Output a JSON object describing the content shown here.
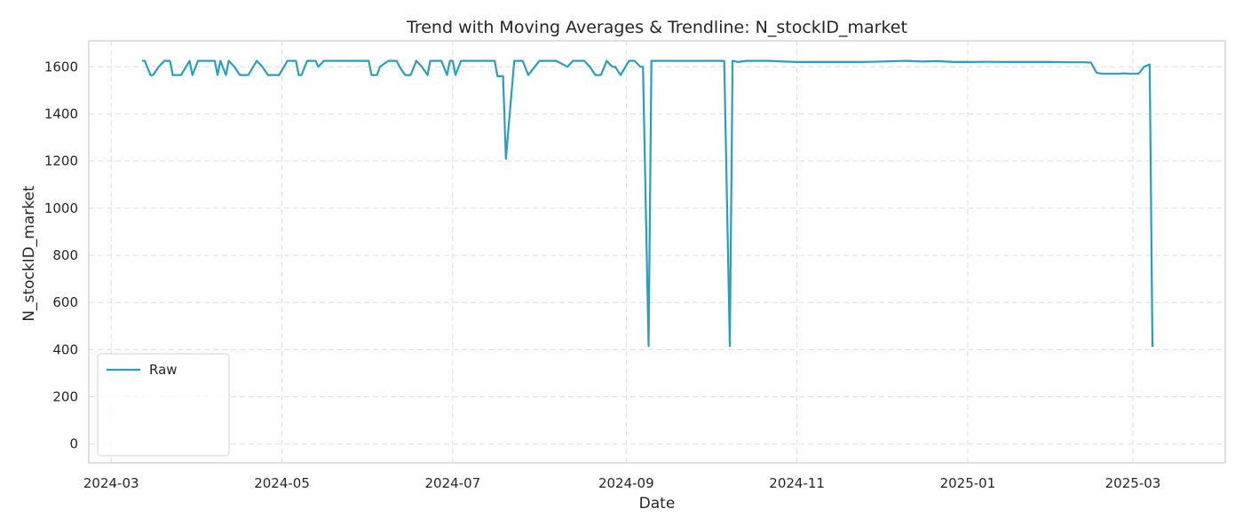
{
  "chart_data": {
    "type": "line",
    "title": "Trend with Moving Averages & Trendline: N_stockID_market",
    "xlabel": "Date",
    "ylabel": "N_stockID_market",
    "xlim": [
      "2024-02-22",
      "2025-04-03"
    ],
    "ylim": [
      -80,
      1710
    ],
    "xticks": [
      "2024-03",
      "2024-05",
      "2024-07",
      "2024-09",
      "2024-11",
      "2025-01",
      "2025-03"
    ],
    "yticks": [
      0,
      200,
      400,
      600,
      800,
      1000,
      1200,
      1400,
      1600
    ],
    "grid": true,
    "legend_position": "lower-left",
    "series": [
      {
        "name": "Raw",
        "color": "#2a9fbc",
        "style": "solid",
        "points": [
          [
            "2024-03-12",
            1625
          ],
          [
            "2024-03-13",
            1625
          ],
          [
            "2024-03-15",
            1565
          ],
          [
            "2024-03-16",
            1565
          ],
          [
            "2024-03-18",
            1600
          ],
          [
            "2024-03-20",
            1625
          ],
          [
            "2024-03-22",
            1625
          ],
          [
            "2024-03-23",
            1565
          ],
          [
            "2024-03-26",
            1565
          ],
          [
            "2024-03-29",
            1625
          ],
          [
            "2024-03-30",
            1565
          ],
          [
            "2024-04-01",
            1625
          ],
          [
            "2024-04-05",
            1625
          ],
          [
            "2024-04-07",
            1625
          ],
          [
            "2024-04-08",
            1565
          ],
          [
            "2024-04-09",
            1625
          ],
          [
            "2024-04-11",
            1565
          ],
          [
            "2024-04-12",
            1625
          ],
          [
            "2024-04-14",
            1600
          ],
          [
            "2024-04-16",
            1565
          ],
          [
            "2024-04-19",
            1565
          ],
          [
            "2024-04-22",
            1625
          ],
          [
            "2024-04-24",
            1600
          ],
          [
            "2024-04-26",
            1565
          ],
          [
            "2024-04-30",
            1565
          ],
          [
            "2024-05-03",
            1625
          ],
          [
            "2024-05-06",
            1625
          ],
          [
            "2024-05-07",
            1565
          ],
          [
            "2024-05-08",
            1565
          ],
          [
            "2024-05-10",
            1625
          ],
          [
            "2024-05-13",
            1625
          ],
          [
            "2024-05-14",
            1600
          ],
          [
            "2024-05-16",
            1625
          ],
          [
            "2024-05-21",
            1625
          ],
          [
            "2024-05-27",
            1625
          ],
          [
            "2024-05-29",
            1625
          ],
          [
            "2024-06-01",
            1625
          ],
          [
            "2024-06-02",
            1565
          ],
          [
            "2024-06-04",
            1565
          ],
          [
            "2024-06-05",
            1600
          ],
          [
            "2024-06-08",
            1625
          ],
          [
            "2024-06-11",
            1625
          ],
          [
            "2024-06-12",
            1600
          ],
          [
            "2024-06-14",
            1565
          ],
          [
            "2024-06-16",
            1565
          ],
          [
            "2024-06-18",
            1625
          ],
          [
            "2024-06-20",
            1600
          ],
          [
            "2024-06-22",
            1565
          ],
          [
            "2024-06-23",
            1625
          ],
          [
            "2024-06-25",
            1625
          ],
          [
            "2024-06-27",
            1625
          ],
          [
            "2024-06-29",
            1565
          ],
          [
            "2024-06-30",
            1625
          ],
          [
            "2024-07-01",
            1625
          ],
          [
            "2024-07-02",
            1565
          ],
          [
            "2024-07-04",
            1625
          ],
          [
            "2024-07-06",
            1625
          ],
          [
            "2024-07-08",
            1625
          ],
          [
            "2024-07-10",
            1625
          ],
          [
            "2024-07-12",
            1625
          ],
          [
            "2024-07-14",
            1625
          ],
          [
            "2024-07-16",
            1625
          ],
          [
            "2024-07-17",
            1560
          ],
          [
            "2024-07-19",
            1560
          ],
          [
            "2024-07-20",
            1210
          ],
          [
            "2024-07-23",
            1625
          ],
          [
            "2024-07-26",
            1625
          ],
          [
            "2024-07-28",
            1565
          ],
          [
            "2024-08-01",
            1625
          ],
          [
            "2024-08-05",
            1625
          ],
          [
            "2024-08-07",
            1625
          ],
          [
            "2024-08-11",
            1600
          ],
          [
            "2024-08-13",
            1625
          ],
          [
            "2024-08-17",
            1625
          ],
          [
            "2024-08-19",
            1600
          ],
          [
            "2024-08-21",
            1565
          ],
          [
            "2024-08-23",
            1565
          ],
          [
            "2024-08-25",
            1625
          ],
          [
            "2024-08-27",
            1600
          ],
          [
            "2024-08-28",
            1600
          ],
          [
            "2024-08-30",
            1565
          ],
          [
            "2024-09-02",
            1625
          ],
          [
            "2024-09-04",
            1625
          ],
          [
            "2024-09-06",
            1600
          ],
          [
            "2024-09-07",
            1600
          ],
          [
            "2024-09-09",
            415
          ],
          [
            "2024-09-10",
            1625
          ],
          [
            "2024-09-13",
            1625
          ],
          [
            "2024-09-17",
            1625
          ],
          [
            "2024-09-21",
            1625
          ],
          [
            "2024-09-24",
            1625
          ],
          [
            "2024-09-30",
            1625
          ],
          [
            "2024-10-02",
            1625
          ],
          [
            "2024-10-03",
            1625
          ],
          [
            "2024-10-04",
            1625
          ],
          [
            "2024-10-05",
            1625
          ],
          [
            "2024-10-06",
            1625
          ],
          [
            "2024-10-08",
            415
          ],
          [
            "2024-10-09",
            1625
          ],
          [
            "2024-10-11",
            1620
          ],
          [
            "2024-10-14",
            1625
          ],
          [
            "2024-10-18",
            1625
          ],
          [
            "2024-10-22",
            1625
          ],
          [
            "2024-10-27",
            1622
          ],
          [
            "2024-11-01",
            1620
          ],
          [
            "2024-11-06",
            1620
          ],
          [
            "2024-11-12",
            1620
          ],
          [
            "2024-11-17",
            1620
          ],
          [
            "2024-11-23",
            1620
          ],
          [
            "2024-11-28",
            1621
          ],
          [
            "2024-12-04",
            1623
          ],
          [
            "2024-12-10",
            1625
          ],
          [
            "2024-12-16",
            1622
          ],
          [
            "2024-12-21",
            1624
          ],
          [
            "2024-12-27",
            1620
          ],
          [
            "2025-01-02",
            1620
          ],
          [
            "2025-01-08",
            1621
          ],
          [
            "2025-01-14",
            1620
          ],
          [
            "2025-01-19",
            1620
          ],
          [
            "2025-01-25",
            1620
          ],
          [
            "2025-01-31",
            1620
          ],
          [
            "2025-02-06",
            1619
          ],
          [
            "2025-02-11",
            1619
          ],
          [
            "2025-02-14",
            1618
          ],
          [
            "2025-02-16",
            1575
          ],
          [
            "2025-02-18",
            1570
          ],
          [
            "2025-02-20",
            1570
          ],
          [
            "2025-02-22",
            1570
          ],
          [
            "2025-02-24",
            1570
          ],
          [
            "2025-02-26",
            1572
          ],
          [
            "2025-02-28",
            1570
          ],
          [
            "2025-03-03",
            1570
          ],
          [
            "2025-03-05",
            1600
          ],
          [
            "2025-03-07",
            1610
          ],
          [
            "2025-03-08",
            412
          ]
        ]
      }
    ]
  }
}
